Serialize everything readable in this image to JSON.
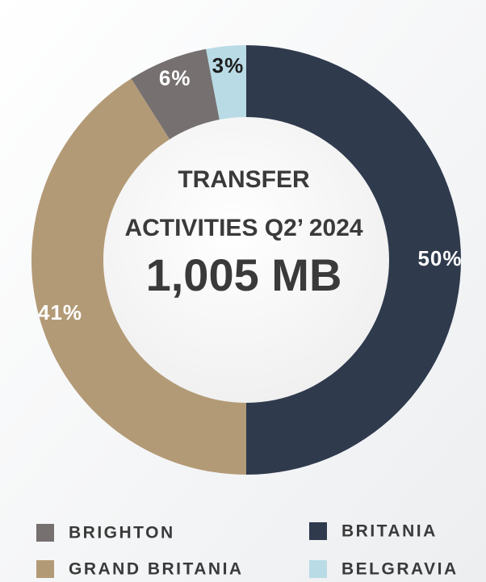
{
  "chart_data": {
    "type": "donut",
    "title": [
      "TRANSFER",
      "ACTIVITIES Q2’ 2024"
    ],
    "total_label": "1,005 MB",
    "categories": [
      "BRITANIA",
      "GRAND BRITANIA",
      "BRIGHTON",
      "BELGRAVIA"
    ],
    "values": [
      50,
      41,
      6,
      3
    ],
    "value_labels": [
      "50%",
      "41%",
      "6%",
      "3%"
    ],
    "colors": [
      "#2f3a4d",
      "#b39a76",
      "#767070",
      "#b9dbe5"
    ],
    "legend": "bottom"
  }
}
